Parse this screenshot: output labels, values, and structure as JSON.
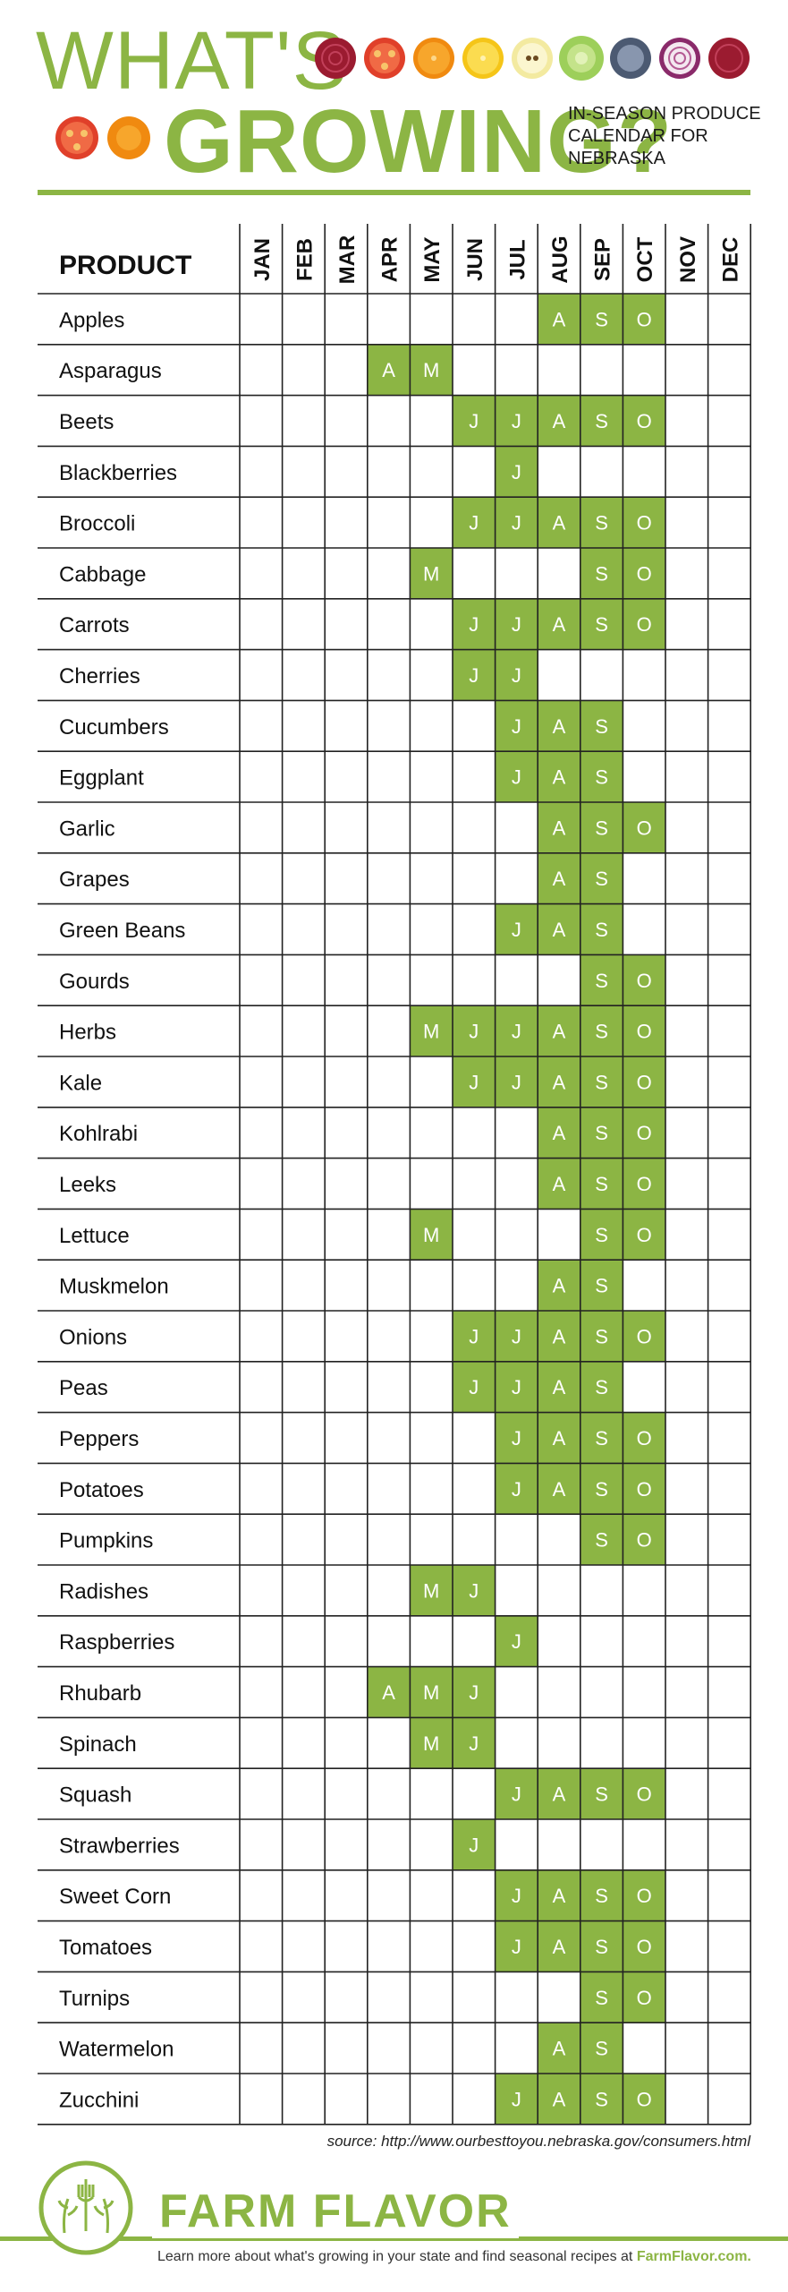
{
  "header": {
    "title_line1": "WHAT'S",
    "title_line2": "GROWING?",
    "subtitle": "IN-SEASON PRODUCE CALENDAR FOR NEBRASKA"
  },
  "colors": {
    "accent": "#8cb544",
    "grid": "#222222",
    "cell_text": "#ffffff"
  },
  "decor_icons": [
    "beet-slice-icon",
    "tomato-slice-icon",
    "orange-slice-icon",
    "lemon-slice-icon",
    "apple-slice-icon",
    "lettuce-icon",
    "blueberry-slice-icon",
    "onion-slice-icon",
    "beet-slice-icon",
    "tomato-slice-icon",
    "carrot-slice-icon"
  ],
  "table": {
    "product_header": "PRODUCT",
    "months": [
      "JAN",
      "FEB",
      "MAR",
      "APR",
      "MAY",
      "JUN",
      "JUL",
      "AUG",
      "SEP",
      "OCT",
      "NOV",
      "DEC"
    ],
    "month_letters": [
      "J",
      "F",
      "M",
      "A",
      "M",
      "J",
      "J",
      "A",
      "S",
      "O",
      "N",
      "D"
    ],
    "rows": [
      {
        "name": "Apples",
        "months": [
          8,
          9,
          10
        ]
      },
      {
        "name": "Asparagus",
        "months": [
          4,
          5
        ]
      },
      {
        "name": "Beets",
        "months": [
          6,
          7,
          8,
          9,
          10
        ]
      },
      {
        "name": "Blackberries",
        "months": [
          7
        ]
      },
      {
        "name": "Broccoli",
        "months": [
          6,
          7,
          8,
          9,
          10
        ]
      },
      {
        "name": "Cabbage",
        "months": [
          5,
          9,
          10
        ]
      },
      {
        "name": "Carrots",
        "months": [
          6,
          7,
          8,
          9,
          10
        ]
      },
      {
        "name": "Cherries",
        "months": [
          6,
          7
        ]
      },
      {
        "name": "Cucumbers",
        "months": [
          7,
          8,
          9
        ]
      },
      {
        "name": "Eggplant",
        "months": [
          7,
          8,
          9
        ]
      },
      {
        "name": "Garlic",
        "months": [
          8,
          9,
          10
        ]
      },
      {
        "name": "Grapes",
        "months": [
          8,
          9
        ]
      },
      {
        "name": "Green Beans",
        "months": [
          7,
          8,
          9
        ]
      },
      {
        "name": "Gourds",
        "months": [
          9,
          10
        ]
      },
      {
        "name": "Herbs",
        "months": [
          5,
          6,
          7,
          8,
          9,
          10
        ]
      },
      {
        "name": "Kale",
        "months": [
          6,
          7,
          8,
          9,
          10
        ]
      },
      {
        "name": "Kohlrabi",
        "months": [
          8,
          9,
          10
        ]
      },
      {
        "name": "Leeks",
        "months": [
          8,
          9,
          10
        ]
      },
      {
        "name": "Lettuce",
        "months": [
          5,
          9,
          10
        ]
      },
      {
        "name": "Muskmelon",
        "months": [
          8,
          9
        ]
      },
      {
        "name": "Onions",
        "months": [
          6,
          7,
          8,
          9,
          10
        ]
      },
      {
        "name": "Peas",
        "months": [
          6,
          7,
          8,
          9
        ]
      },
      {
        "name": "Peppers",
        "months": [
          7,
          8,
          9,
          10
        ]
      },
      {
        "name": "Potatoes",
        "months": [
          7,
          8,
          9,
          10
        ]
      },
      {
        "name": "Pumpkins",
        "months": [
          9,
          10
        ]
      },
      {
        "name": "Radishes",
        "months": [
          5,
          6
        ]
      },
      {
        "name": "Raspberries",
        "months": [
          7
        ]
      },
      {
        "name": "Rhubarb",
        "months": [
          4,
          5,
          6
        ]
      },
      {
        "name": "Spinach",
        "months": [
          5,
          6
        ]
      },
      {
        "name": "Squash",
        "months": [
          7,
          8,
          9,
          10
        ]
      },
      {
        "name": "Strawberries",
        "months": [
          6
        ]
      },
      {
        "name": "Sweet Corn",
        "months": [
          7,
          8,
          9,
          10
        ]
      },
      {
        "name": "Tomatoes",
        "months": [
          7,
          8,
          9,
          10
        ]
      },
      {
        "name": "Turnips",
        "months": [
          9,
          10
        ]
      },
      {
        "name": "Watermelon",
        "months": [
          8,
          9
        ]
      },
      {
        "name": "Zucchini",
        "months": [
          7,
          8,
          9,
          10
        ]
      }
    ]
  },
  "source": "source: http://www.ourbesttoyou.nebraska.gov/consumers.html",
  "footer": {
    "brand": "FARM FLAVOR",
    "text": "Learn more about what's growing in your state and find seasonal recipes at ",
    "link": "FarmFlavor.com."
  }
}
